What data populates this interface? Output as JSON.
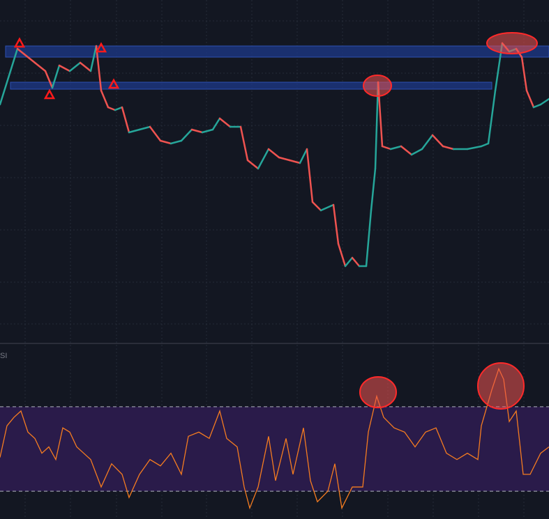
{
  "chart_data": [
    {
      "type": "line",
      "xlim": [
        0,
        787
      ],
      "ylim": [
        0,
        110
      ],
      "x": [
        0,
        15,
        25,
        35,
        50,
        65,
        75,
        85,
        100,
        115,
        130,
        138,
        145,
        155,
        165,
        175,
        185,
        200,
        215,
        230,
        245,
        260,
        275,
        290,
        305,
        315,
        330,
        345,
        355,
        370,
        385,
        400,
        415,
        430,
        440,
        448,
        460,
        478,
        485,
        495,
        505,
        515,
        525,
        532,
        538,
        542,
        548,
        560,
        575,
        590,
        605,
        620,
        635,
        650,
        670,
        690,
        700,
        710,
        720,
        730,
        740,
        748,
        755,
        765,
        775,
        787
      ],
      "values": [
        80,
        92,
        100,
        98,
        95,
        92,
        86,
        94,
        92,
        95,
        92,
        101,
        85,
        79,
        78,
        79,
        70,
        71,
        72,
        67,
        66,
        67,
        71,
        70,
        71,
        75,
        72,
        72,
        60,
        57,
        64,
        61,
        60,
        59,
        64,
        45,
        42,
        44,
        30,
        22,
        25,
        22,
        22,
        42,
        57,
        88,
        65,
        64,
        65,
        62,
        64,
        69,
        65,
        64,
        64,
        65,
        66,
        85,
        102,
        99,
        100,
        97,
        85,
        79,
        80,
        82
      ],
      "up_color": "#26a69a",
      "down_color": "#ef5350",
      "zones": [
        {
          "from": 97,
          "to": 101,
          "x_from": 8,
          "x_to": 787
        },
        {
          "from": 85.5,
          "to": 88,
          "x_from": 15,
          "x_to": 705
        }
      ],
      "zone_color": "#1e3a8a"
    },
    {
      "type": "line",
      "label": "SI",
      "xlim": [
        0,
        787
      ],
      "ylim": [
        0,
        100
      ],
      "color": "#f57c20",
      "x": [
        0,
        10,
        20,
        30,
        40,
        50,
        60,
        70,
        80,
        90,
        100,
        110,
        120,
        130,
        145,
        160,
        175,
        185,
        200,
        215,
        230,
        245,
        260,
        270,
        285,
        300,
        315,
        325,
        340,
        350,
        358,
        370,
        385,
        395,
        410,
        420,
        435,
        445,
        455,
        470,
        480,
        490,
        505,
        520,
        528,
        540,
        550,
        565,
        580,
        595,
        610,
        625,
        640,
        655,
        670,
        685,
        690,
        705,
        715,
        722,
        730,
        740,
        750,
        760,
        775,
        787
      ],
      "values": [
        46,
        61,
        65,
        68,
        58,
        55,
        48,
        51,
        45,
        60,
        58,
        51,
        48,
        45,
        32,
        43,
        38,
        27,
        38,
        45,
        42,
        48,
        38,
        56,
        58,
        55,
        68,
        55,
        51,
        32,
        22,
        32,
        56,
        35,
        55,
        38,
        60,
        35,
        25,
        30,
        43,
        22,
        32,
        32,
        58,
        75,
        65,
        60,
        58,
        51,
        58,
        60,
        48,
        45,
        48,
        45,
        61,
        78,
        88,
        83,
        63,
        68,
        38,
        38,
        48,
        51
      ],
      "bands": [
        30,
        70
      ],
      "band_fill": "#2a1b4a"
    }
  ]
}
